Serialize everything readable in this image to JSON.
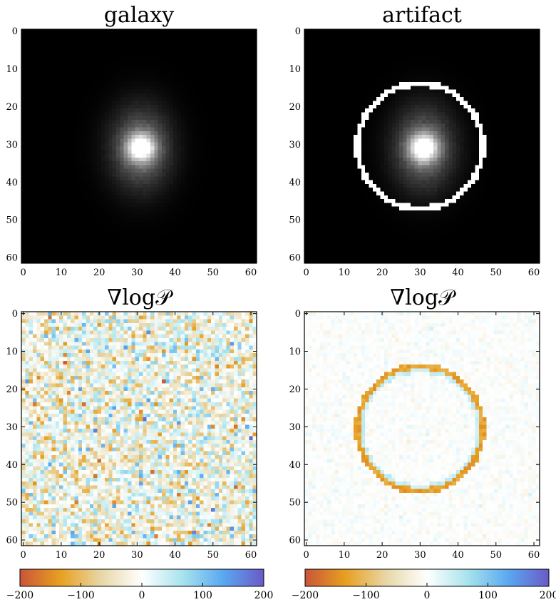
{
  "chart_data": [
    {
      "type": "heatmap",
      "title": "galaxy",
      "colormap": "grayscale",
      "image": "galaxy",
      "xlim": [
        0,
        62
      ],
      "ylim": [
        0,
        62
      ],
      "xticks": [
        0,
        10,
        20,
        30,
        40,
        50,
        60
      ],
      "yticks": [
        0,
        10,
        20,
        30,
        40,
        50,
        60
      ],
      "galaxy_center": [
        31,
        31
      ],
      "grid": false
    },
    {
      "type": "heatmap",
      "title": "artifact",
      "colormap": "grayscale",
      "image": "galaxy plus white ring artifact",
      "xlim": [
        0,
        62
      ],
      "ylim": [
        0,
        62
      ],
      "xticks": [
        0,
        10,
        20,
        30,
        40,
        50,
        60
      ],
      "yticks": [
        0,
        10,
        20,
        30,
        40,
        50,
        60
      ],
      "galaxy_center": [
        31,
        31
      ],
      "artifact_ring": {
        "center_x": 30,
        "center_y": 30.5,
        "radius": 16.5
      },
      "grid": false
    },
    {
      "type": "heatmap",
      "title": "∇log𝒫",
      "colormap": "diverging orange-white-blue",
      "image": "noisy gradient, no structure",
      "xlim": [
        0,
        62
      ],
      "ylim": [
        0,
        62
      ],
      "xticks": [
        0,
        10,
        20,
        30,
        40,
        50,
        60
      ],
      "yticks": [
        0,
        10,
        20,
        30,
        40,
        50,
        60
      ],
      "value_range": [
        -200,
        200
      ],
      "grid": false
    },
    {
      "type": "heatmap",
      "title": "∇log𝒫",
      "colormap": "diverging orange-white-blue",
      "image": "gradient highlights ring artifact",
      "xlim": [
        0,
        62
      ],
      "ylim": [
        0,
        62
      ],
      "xticks": [
        0,
        10,
        20,
        30,
        40,
        50,
        60
      ],
      "yticks": [
        0,
        10,
        20,
        30,
        40,
        50,
        60
      ],
      "value_range": [
        -200,
        200
      ],
      "artifact_ring": {
        "center_x": 30,
        "center_y": 30.5,
        "radius": 16.5
      },
      "grid": false
    }
  ],
  "colorbars": [
    {
      "min": -200,
      "max": 200,
      "ticks": [
        -200,
        -100,
        0,
        100,
        200
      ],
      "tick_labels": [
        "−200",
        "−100",
        "0",
        "100",
        "200"
      ],
      "colors": [
        "#c9553a",
        "#e8a020",
        "#e7d7a8",
        "#ffffff",
        "#a8e3ec",
        "#5aa8f0",
        "#6a5ac8"
      ]
    },
    {
      "min": -200,
      "max": 200,
      "ticks": [
        -200,
        -100,
        0,
        100,
        200
      ],
      "tick_labels": [
        "−200",
        "−100",
        "0",
        "100",
        "200"
      ],
      "colors": [
        "#c9553a",
        "#e8a020",
        "#e7d7a8",
        "#ffffff",
        "#a8e3ec",
        "#5aa8f0",
        "#6a5ac8"
      ]
    }
  ]
}
